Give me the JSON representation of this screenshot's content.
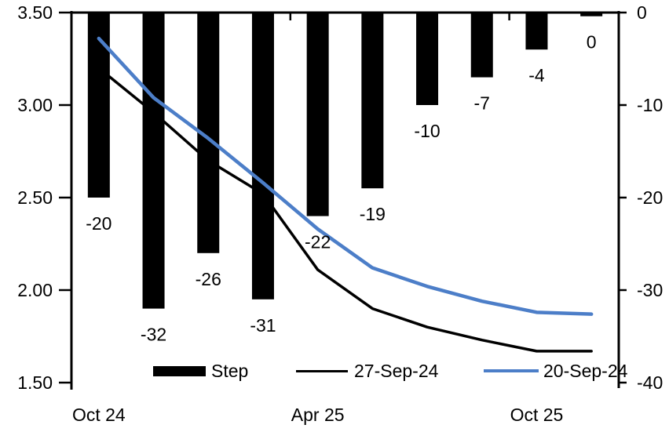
{
  "chart_data": {
    "type": "combo-bar-line",
    "title": "",
    "n_categories": 10,
    "x_axis": {
      "tick_labels": [
        "Oct 24",
        "Apr 25",
        "Oct 25"
      ],
      "label_category_indexes": [
        0,
        4,
        8
      ],
      "boundary_tick_indexes": [
        0,
        4,
        8
      ]
    },
    "left_axis": {
      "min": 1.5,
      "max": 3.5,
      "tick_labels": [
        "3.50",
        "3.00",
        "2.50",
        "2.00",
        "1.50"
      ]
    },
    "right_axis": {
      "min": -40,
      "max": 0,
      "tick_labels": [
        "0",
        "-10",
        "-20",
        "-30",
        "-40"
      ]
    },
    "series": [
      {
        "name": "Step",
        "type": "bar",
        "axis": "right",
        "color": "#000000",
        "values": [
          -20,
          -32,
          -26,
          -31,
          -22,
          -19,
          -10,
          -7,
          -4,
          -0.4
        ],
        "data_labels": [
          "-20",
          "-32",
          "-26",
          "-31",
          "-22",
          "-19",
          "-10",
          "-7",
          "-4",
          "0"
        ]
      },
      {
        "name": "27-Sep-24",
        "type": "line",
        "axis": "left",
        "color": "#000000",
        "values": [
          3.2,
          2.96,
          2.7,
          2.52,
          2.11,
          1.9,
          1.8,
          1.73,
          1.67,
          1.67
        ]
      },
      {
        "name": "20-Sep-24",
        "type": "line",
        "axis": "left",
        "color": "#4c7ec8",
        "values": [
          3.36,
          3.04,
          2.82,
          2.58,
          2.33,
          2.12,
          2.02,
          1.94,
          1.88,
          1.87
        ]
      }
    ],
    "legend": {
      "position": "bottom-inside"
    },
    "grid": "off",
    "background": "#ffffff",
    "text_color": "#000000"
  }
}
